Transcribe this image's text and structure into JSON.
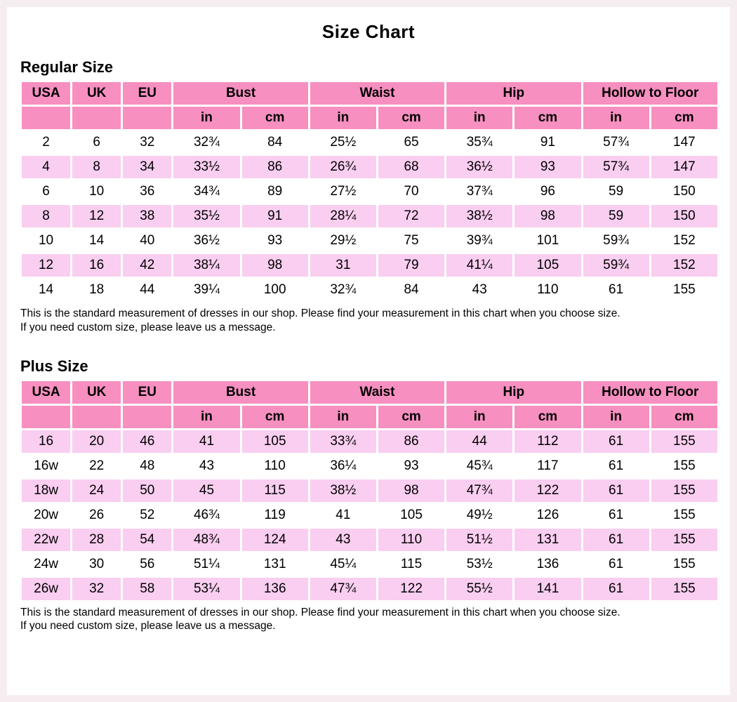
{
  "title": "Size Chart",
  "colors": {
    "header_pink": "#F78FC0",
    "row_pink": "#F9CEF0",
    "page_bg": "#F6EDF1",
    "content_bg": "#FFFFFF",
    "text": "#000000"
  },
  "note": {
    "line1": "This is the standard measurement of dresses in our shop. Please find your measurement in this chart when you choose size.",
    "line2": "If you need custom size, please leave us a message."
  },
  "tables": [
    {
      "section_title": "Regular Size",
      "group_headers": [
        "USA",
        "UK",
        "EU",
        "Bust",
        "Waist",
        "Hip",
        "Hollow to Floor"
      ],
      "unit_headers": [
        "in",
        "cm",
        "in",
        "cm",
        "in",
        "cm",
        "in",
        "cm"
      ],
      "shaded_parity": 1,
      "rows": [
        [
          "2",
          "6",
          "32",
          "32¾",
          "84",
          "25½",
          "65",
          "35¾",
          "91",
          "57¾",
          "147"
        ],
        [
          "4",
          "8",
          "34",
          "33½",
          "86",
          "26¾",
          "68",
          "36½",
          "93",
          "57¾",
          "147"
        ],
        [
          "6",
          "10",
          "36",
          "34¾",
          "89",
          "27½",
          "70",
          "37¾",
          "96",
          "59",
          "150"
        ],
        [
          "8",
          "12",
          "38",
          "35½",
          "91",
          "28¼",
          "72",
          "38½",
          "98",
          "59",
          "150"
        ],
        [
          "10",
          "14",
          "40",
          "36½",
          "93",
          "29½",
          "75",
          "39¾",
          "101",
          "59¾",
          "152"
        ],
        [
          "12",
          "16",
          "42",
          "38¼",
          "98",
          "31",
          "79",
          "41¼",
          "105",
          "59¾",
          "152"
        ],
        [
          "14",
          "18",
          "44",
          "39¼",
          "100",
          "32¾",
          "84",
          "43",
          "110",
          "61",
          "155"
        ]
      ]
    },
    {
      "section_title": "Plus Size",
      "group_headers": [
        "USA",
        "UK",
        "EU",
        "Bust",
        "Waist",
        "Hip",
        "Hollow to Floor"
      ],
      "unit_headers": [
        "in",
        "cm",
        "in",
        "cm",
        "in",
        "cm",
        "in",
        "cm"
      ],
      "shaded_parity": 0,
      "rows": [
        [
          "16",
          "20",
          "46",
          "41",
          "105",
          "33¾",
          "86",
          "44",
          "112",
          "61",
          "155"
        ],
        [
          "16w",
          "22",
          "48",
          "43",
          "110",
          "36¼",
          "93",
          "45¾",
          "117",
          "61",
          "155"
        ],
        [
          "18w",
          "24",
          "50",
          "45",
          "115",
          "38½",
          "98",
          "47¾",
          "122",
          "61",
          "155"
        ],
        [
          "20w",
          "26",
          "52",
          "46¾",
          "119",
          "41",
          "105",
          "49½",
          "126",
          "61",
          "155"
        ],
        [
          "22w",
          "28",
          "54",
          "48¾",
          "124",
          "43",
          "110",
          "51½",
          "131",
          "61",
          "155"
        ],
        [
          "24w",
          "30",
          "56",
          "51¼",
          "131",
          "45¼",
          "115",
          "53½",
          "136",
          "61",
          "155"
        ],
        [
          "26w",
          "32",
          "58",
          "53¼",
          "136",
          "47¾",
          "122",
          "55½",
          "141",
          "61",
          "155"
        ]
      ]
    }
  ]
}
